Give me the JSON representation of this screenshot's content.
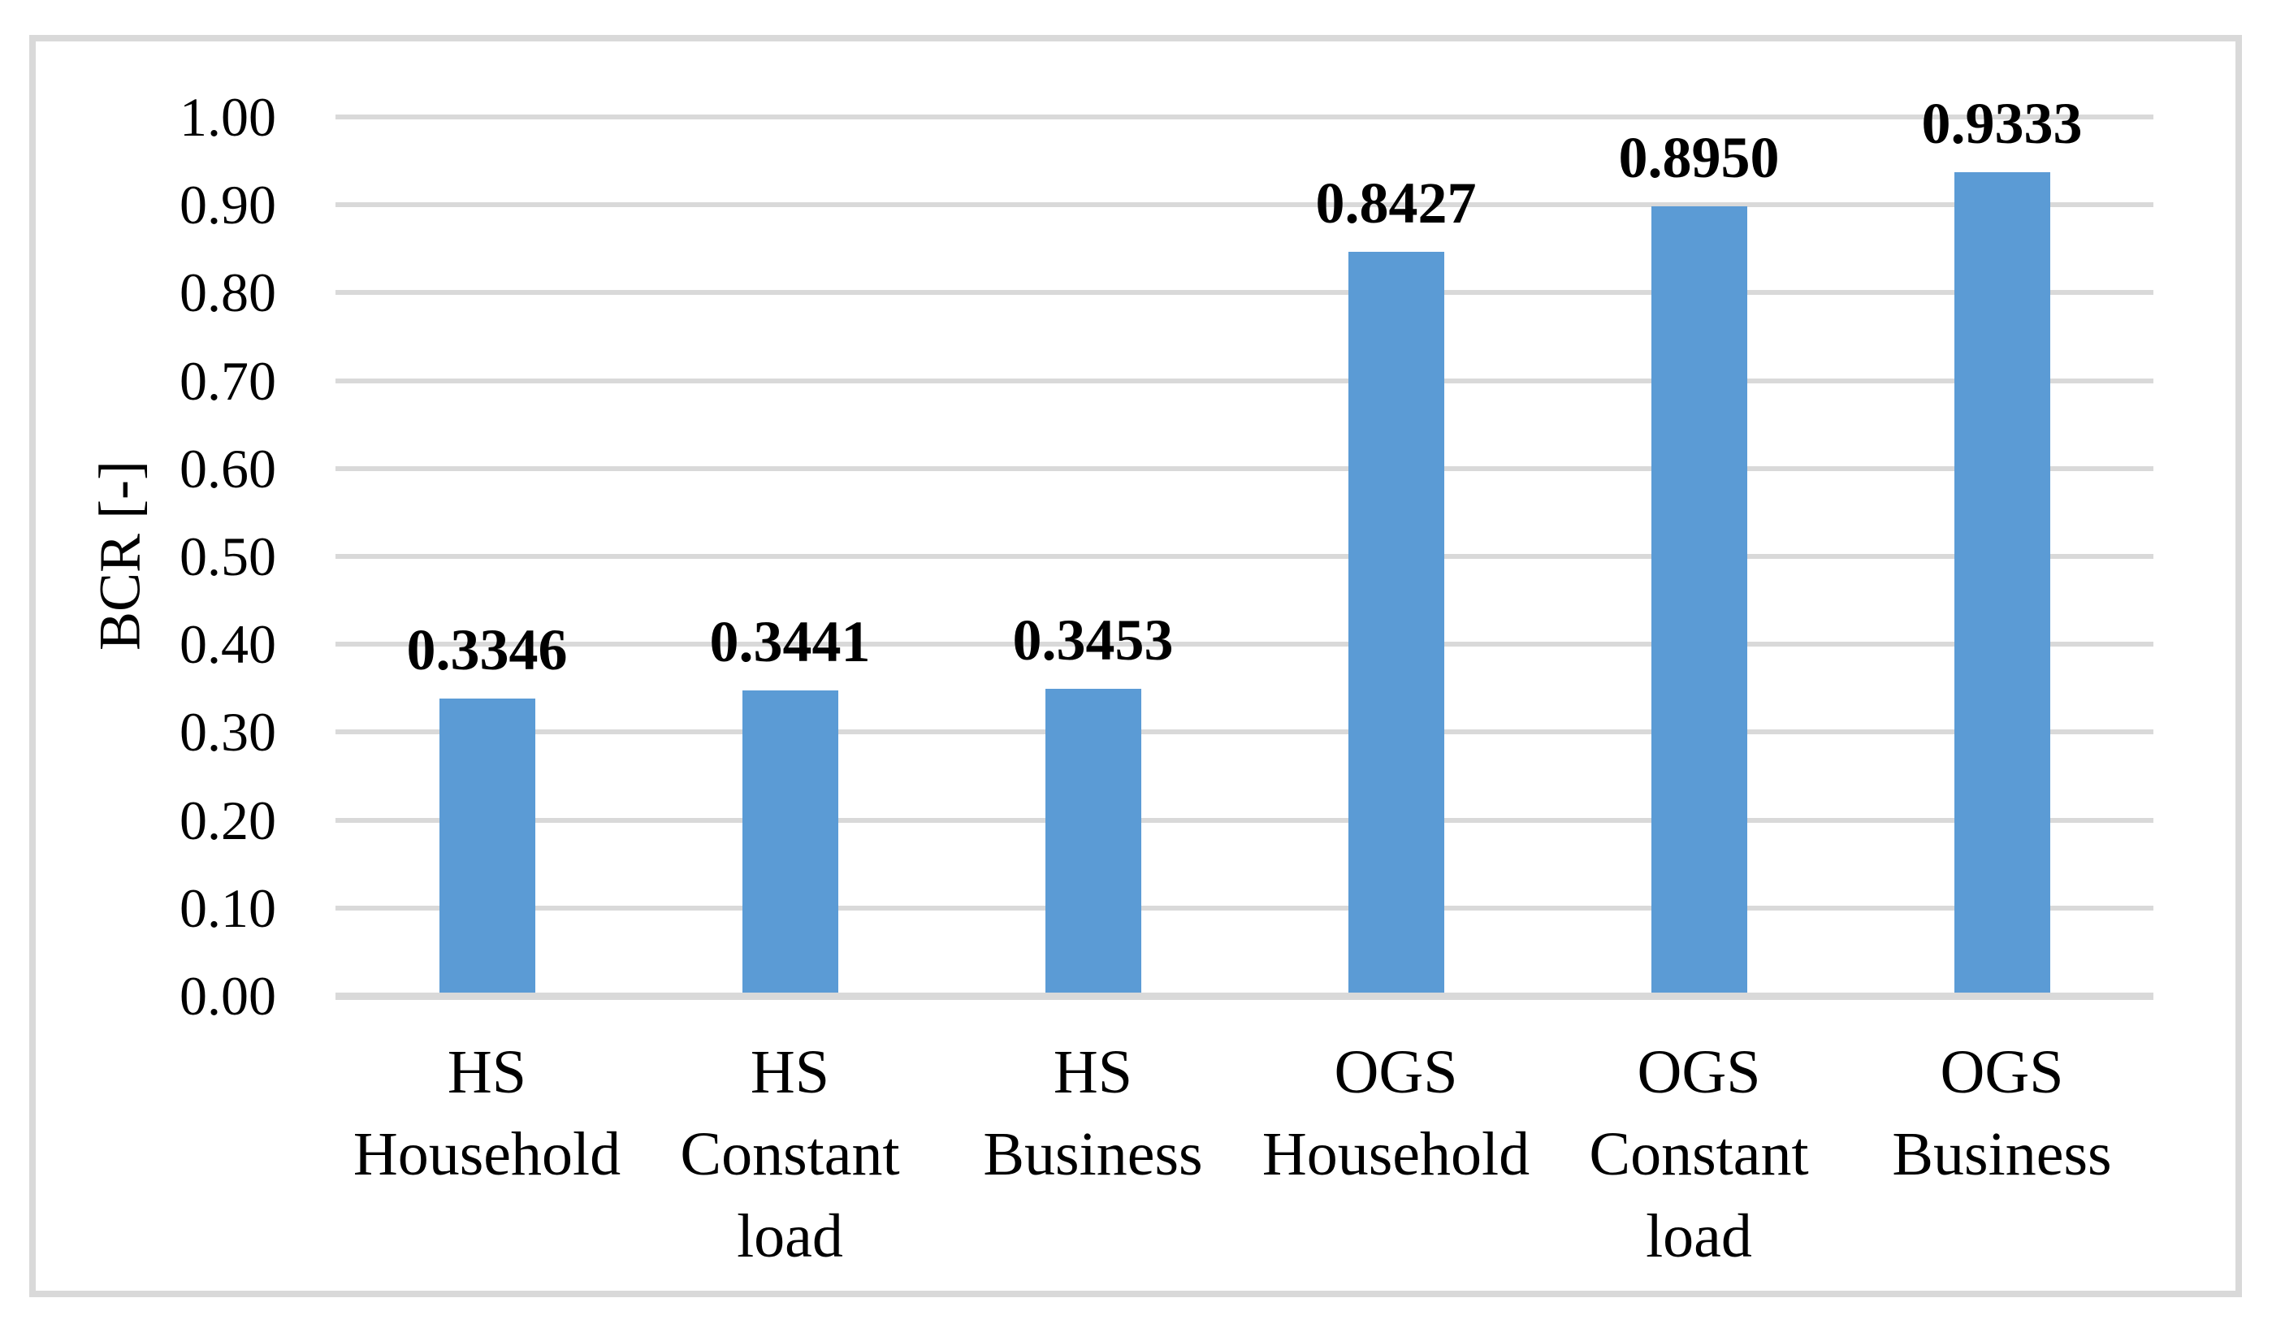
{
  "figure": {
    "background_color": "#FFFFFF",
    "border_color": "#D9D9D9",
    "title": ""
  },
  "chart_data": {
    "type": "bar",
    "title": "",
    "xlabel": "",
    "ylabel": "BCR [-]",
    "ylim": [
      0.0,
      1.0
    ],
    "ytick_step": 0.1,
    "yticks": [
      "1.00",
      "0.90",
      "0.80",
      "0.70",
      "0.60",
      "0.50",
      "0.40",
      "0.30",
      "0.20",
      "0.10",
      "0.00"
    ],
    "categories": [
      "HS Household",
      "HS Constant load",
      "HS Business",
      "OGS Household",
      "OGS Constant load",
      "OGS Business"
    ],
    "category_label_lines": [
      [
        "HS",
        "Household"
      ],
      [
        "HS",
        "Constant",
        "load"
      ],
      [
        "HS",
        "Business"
      ],
      [
        "OGS",
        "Household"
      ],
      [
        "OGS",
        "Constant",
        "load"
      ],
      [
        "OGS",
        "Business"
      ]
    ],
    "series": [
      {
        "name": "BCR",
        "values": [
          0.3346,
          0.3441,
          0.3453,
          0.8427,
          0.895,
          0.9333
        ]
      }
    ],
    "data_labels": [
      "0.3346",
      "0.3441",
      "0.3453",
      "0.8427",
      "0.8950",
      "0.9333"
    ],
    "grid": true,
    "legend_position": "none",
    "bar_color": "#5B9BD5",
    "gridline_color": "#D9D9D9",
    "axis_line_color": "#D9D9D9",
    "text_color": "#000000"
  }
}
